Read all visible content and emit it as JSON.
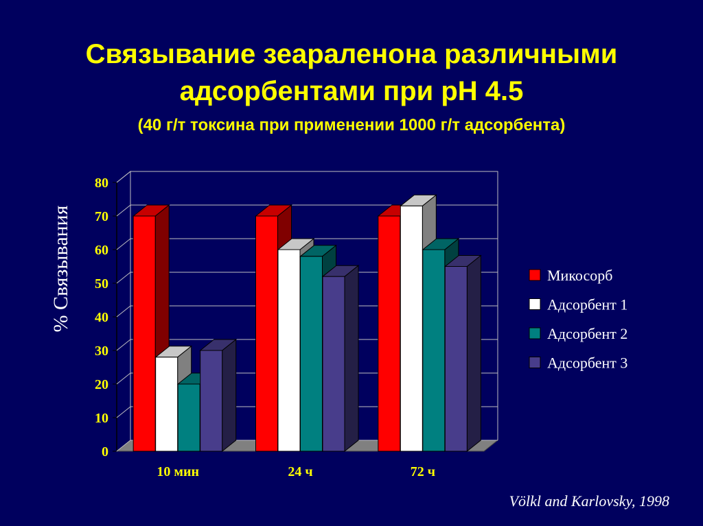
{
  "chart_data": {
    "type": "bar3d",
    "title": [
      "Связывание зеараленона различными",
      "адсорбентами при pH 4.5"
    ],
    "subtitle": "(40 г/т токсина при применении 1000 г/т адсорбента)",
    "y_label": "% Связывания",
    "categories": [
      "10 мин",
      "24 ч",
      "72 ч"
    ],
    "series": [
      {
        "name": "Микосорб",
        "color": "#ff0000",
        "values": [
          70,
          70,
          70
        ]
      },
      {
        "name": "Адсорбент 1",
        "color": "#ffffff",
        "values": [
          28,
          60,
          73
        ]
      },
      {
        "name": "Адсорбент 2",
        "color": "#008080",
        "values": [
          20,
          58,
          60
        ]
      },
      {
        "name": "Адсорбент 3",
        "color": "#483d8b",
        "values": [
          30,
          52,
          55
        ]
      }
    ],
    "ylim": [
      0,
      80
    ],
    "yticks": [
      0,
      10,
      20,
      30,
      40,
      50,
      60,
      70,
      80
    ],
    "grid": true,
    "legend": "right",
    "source": "Völkl and Karlovsky, 1998"
  }
}
